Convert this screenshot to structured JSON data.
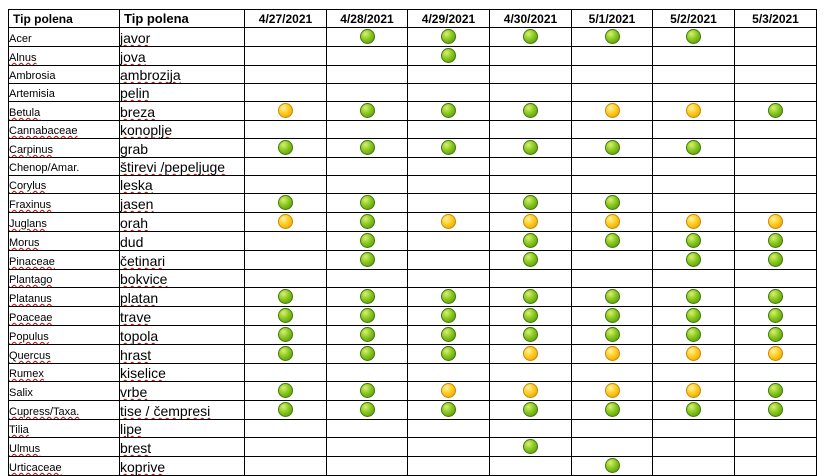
{
  "header": {
    "col_latin": "Tip polena",
    "col_local": "Tip polena",
    "dates": [
      "4/27/2021",
      "4/28/2021",
      "4/29/2021",
      "4/30/2021",
      "5/1/2021",
      "5/2/2021",
      "5/3/2021"
    ]
  },
  "legend_colors": {
    "green": "#7fbf1e",
    "yellow": "#ffc820"
  },
  "rows": [
    {
      "latin": "Acer",
      "local": "javor",
      "spell": [
        0,
        1
      ],
      "marks": [
        "",
        "g",
        "g",
        "g",
        "g",
        "g",
        ""
      ]
    },
    {
      "latin": "Alnus",
      "local": "jova",
      "spell": [
        1,
        1
      ],
      "marks": [
        "",
        "",
        "g",
        "",
        "",
        "",
        ""
      ]
    },
    {
      "latin": "Ambrosia",
      "local": "ambrozija",
      "spell": [
        0,
        1
      ],
      "marks": [
        "",
        "",
        "",
        "",
        "",
        "",
        ""
      ]
    },
    {
      "latin": "Artemisia",
      "local": "pelin",
      "spell": [
        0,
        1
      ],
      "marks": [
        "",
        "",
        "",
        "",
        "",
        "",
        ""
      ]
    },
    {
      "latin": "Betula",
      "local": "breza",
      "spell": [
        1,
        1
      ],
      "marks": [
        "y",
        "g",
        "g",
        "g",
        "y",
        "y",
        "g"
      ]
    },
    {
      "latin": "Cannabaceae",
      "local": "konoplje",
      "spell": [
        1,
        1
      ],
      "marks": [
        "",
        "",
        "",
        "",
        "",
        "",
        ""
      ]
    },
    {
      "latin": "Carpinus",
      "local": "grab",
      "spell": [
        1,
        0
      ],
      "marks": [
        "g",
        "g",
        "g",
        "g",
        "g",
        "g",
        ""
      ]
    },
    {
      "latin": "Chenop/Amar.",
      "local": "štirevi /pepeljuge",
      "spell": [
        0,
        1
      ],
      "marks": [
        "",
        "",
        "",
        "",
        "",
        "",
        ""
      ]
    },
    {
      "latin": "Corylus",
      "local": "leska",
      "spell": [
        1,
        1
      ],
      "marks": [
        "",
        "",
        "",
        "",
        "",
        "",
        ""
      ]
    },
    {
      "latin": "Fraxinus",
      "local": "jasen",
      "spell": [
        1,
        1
      ],
      "marks": [
        "g",
        "g",
        "",
        "g",
        "g",
        "",
        ""
      ]
    },
    {
      "latin": "Juglans",
      "local": "orah",
      "spell": [
        1,
        1
      ],
      "marks": [
        "y",
        "g",
        "y",
        "y",
        "y",
        "y",
        "y"
      ]
    },
    {
      "latin": "Morus",
      "local": "dud",
      "spell": [
        1,
        0
      ],
      "marks": [
        "",
        "g",
        "",
        "g",
        "g",
        "g",
        "g"
      ]
    },
    {
      "latin": "Pinaceae",
      "local": "četinari",
      "spell": [
        1,
        1
      ],
      "marks": [
        "",
        "g",
        "",
        "g",
        "",
        "g",
        "g"
      ]
    },
    {
      "latin": "Plantago",
      "local": "bokvice",
      "spell": [
        1,
        1
      ],
      "marks": [
        "",
        "",
        "",
        "",
        "",
        "",
        ""
      ]
    },
    {
      "latin": "Platanus",
      "local": "platan",
      "spell": [
        1,
        1
      ],
      "marks": [
        "g",
        "g",
        "g",
        "g",
        "g",
        "g",
        "g"
      ]
    },
    {
      "latin": "Poaceae",
      "local": "trave",
      "spell": [
        1,
        1
      ],
      "marks": [
        "g",
        "g",
        "g",
        "g",
        "g",
        "g",
        "g"
      ]
    },
    {
      "latin": "Populus",
      "local": "topola",
      "spell": [
        1,
        1
      ],
      "marks": [
        "g",
        "g",
        "g",
        "g",
        "g",
        "g",
        "g"
      ]
    },
    {
      "latin": "Quercus",
      "local": "hrast",
      "spell": [
        1,
        1
      ],
      "marks": [
        "g",
        "g",
        "g",
        "y",
        "y",
        "y",
        "y"
      ]
    },
    {
      "latin": "Rumex",
      "local": "kiselice",
      "spell": [
        1,
        1
      ],
      "marks": [
        "",
        "",
        "",
        "",
        "",
        "",
        ""
      ]
    },
    {
      "latin": "Salix",
      "local": "vrbe",
      "spell": [
        0,
        1
      ],
      "marks": [
        "g",
        "g",
        "y",
        "y",
        "y",
        "y",
        "g"
      ]
    },
    {
      "latin": "Cupress/Taxa.",
      "local": "tise / čempresi",
      "spell": [
        1,
        1
      ],
      "marks": [
        "g",
        "g",
        "g",
        "g",
        "g",
        "g",
        "g"
      ]
    },
    {
      "latin": "Tilia",
      "local": "lipe",
      "spell": [
        1,
        1
      ],
      "marks": [
        "",
        "",
        "",
        "",
        "",
        "",
        ""
      ]
    },
    {
      "latin": "Ulmus",
      "local": "brest",
      "spell": [
        1,
        1
      ],
      "marks": [
        "",
        "",
        "",
        "g",
        "",
        "",
        ""
      ]
    },
    {
      "latin": "Urticaceae",
      "local": "koprive",
      "spell": [
        1,
        1
      ],
      "marks": [
        "",
        "",
        "",
        "",
        "g",
        "",
        ""
      ]
    }
  ]
}
